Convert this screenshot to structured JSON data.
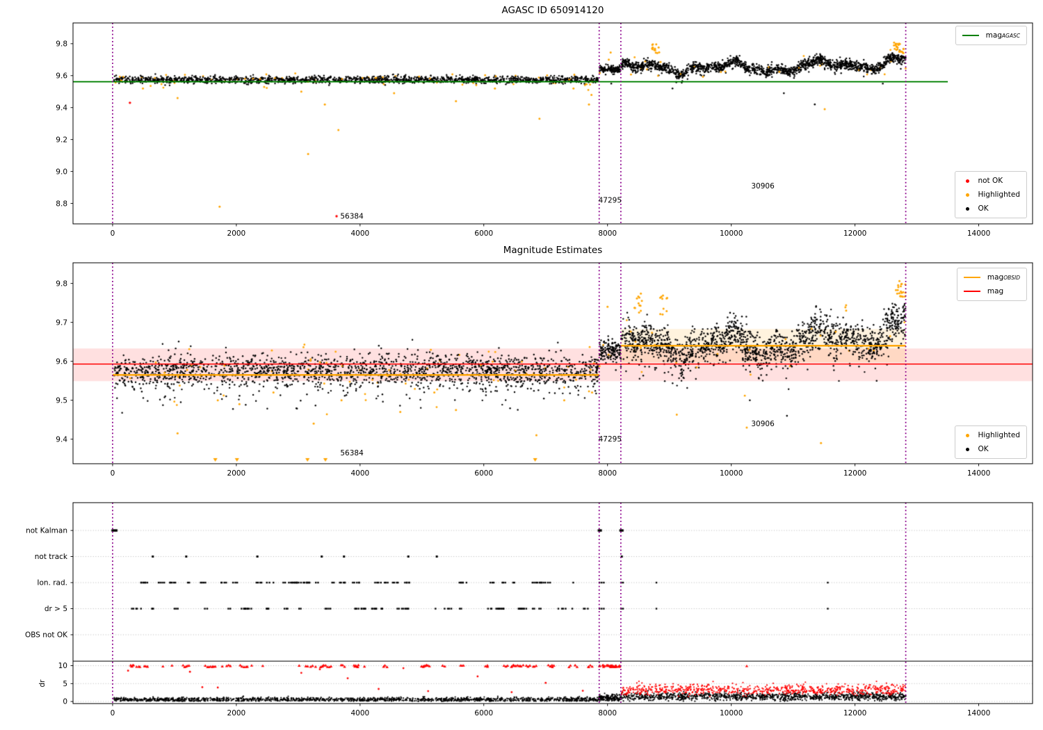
{
  "figure": {
    "plot1_title": "AGASC ID 650914120",
    "plot2_title": "Magnitude Estimates"
  },
  "colors": {
    "ok": "#000000",
    "highlighted": "#ffa500",
    "not_ok": "#ff0000",
    "mag_agasc": "#008000",
    "mag_obsid": "#ffa500",
    "mag": "#ff0000",
    "boundary_line": "#8b008b",
    "band_pink": "rgba(255,0,0,0.12)",
    "band_cream": "rgba(255,165,0,0.13)",
    "grid": "#b5b5b5"
  },
  "legends": {
    "plot1_line": {
      "label_prefix": "mag",
      "label_sub": "AGASC"
    },
    "plot1_markers": {
      "not_ok": "not OK",
      "highlighted": "Highlighted",
      "ok": "OK"
    },
    "plot2_line": {
      "obsid_prefix": "mag",
      "obsid_sub": "OBSID",
      "mag_label": "mag"
    },
    "plot2_markers": {
      "highlighted": "Highlighted",
      "ok": "OK"
    }
  },
  "chart_data": [
    {
      "type": "scatter",
      "title": "AGASC ID 650914120",
      "xlabel": "",
      "ylabel": "",
      "xlim": [
        -640,
        14870
      ],
      "ylim": [
        8.672,
        9.93
      ],
      "xticks": [
        0,
        2000,
        4000,
        6000,
        8000,
        10000,
        12000,
        14000
      ],
      "yticks": [
        8.8,
        9.0,
        9.2,
        9.4,
        9.6,
        9.8
      ],
      "legend": [
        "mag_AGASC",
        "not OK",
        "Highlighted",
        "OK"
      ],
      "agasc_line": {
        "y": 9.562,
        "x0": -640,
        "x1": 13500
      },
      "obsid_boundaries": [
        0,
        7865,
        8215,
        12820
      ],
      "series": [
        {
          "name": "OK band pre-jump",
          "x0": 20,
          "x1": 7850,
          "n": 1600,
          "mean": 9.574,
          "sigma": 0.011,
          "highlight_fraction": 0.05
        },
        {
          "name": "OK band between boundaries",
          "x0": 7870,
          "x1": 8210,
          "n": 130,
          "mean": 9.639,
          "sigma": 0.012,
          "highlight_fraction": 0.03
        },
        {
          "name": "OK band post-jump",
          "x0": 8215,
          "x1": 12820,
          "n": 1700,
          "base": 9.648,
          "wiggle": 0.045,
          "sigma": 0.017,
          "highlight_fraction": 0.012
        }
      ],
      "highlighted_outliers": [
        [
          490,
          9.52
        ],
        [
          1050,
          9.46
        ],
        [
          1730,
          8.78
        ],
        [
          2450,
          9.53
        ],
        [
          3050,
          9.5
        ],
        [
          3160,
          9.11
        ],
        [
          3430,
          9.42
        ],
        [
          3650,
          9.26
        ],
        [
          4550,
          9.49
        ],
        [
          5550,
          9.44
        ],
        [
          6180,
          9.52
        ],
        [
          6900,
          9.33
        ],
        [
          7450,
          9.52
        ],
        [
          7700,
          9.42
        ],
        [
          7740,
          9.48
        ],
        [
          8020,
          9.7
        ],
        [
          8050,
          9.745
        ],
        [
          11510,
          9.39
        ]
      ],
      "highlighted_clusters": [
        {
          "x0": 8720,
          "x1": 8880,
          "y0": 9.74,
          "y1": 9.8,
          "n": 14
        },
        {
          "x0": 12630,
          "x1": 12800,
          "y0": 9.74,
          "y1": 9.82,
          "n": 24
        }
      ],
      "not_ok_points": [
        [
          280,
          9.43
        ],
        [
          3620,
          8.72
        ]
      ],
      "ok_low_points": [
        [
          9050,
          9.52
        ],
        [
          10850,
          9.49
        ],
        [
          11350,
          9.42
        ],
        [
          12450,
          9.55
        ],
        [
          8060,
          9.55
        ]
      ],
      "annotations": [
        {
          "text": "56384",
          "x": 3680,
          "y": 8.72
        },
        {
          "text": "47295",
          "x": 8040,
          "y": 8.82
        },
        {
          "text": "30906",
          "x": 10510,
          "y": 8.91
        }
      ]
    },
    {
      "type": "scatter",
      "title": "Magnitude Estimates",
      "xlabel": "",
      "ylabel": "",
      "xlim": [
        -640,
        14870
      ],
      "ylim": [
        9.337,
        9.853
      ],
      "xticks": [
        0,
        2000,
        4000,
        6000,
        8000,
        10000,
        12000,
        14000
      ],
      "yticks": [
        9.4,
        9.5,
        9.6,
        9.7,
        9.8
      ],
      "legend": [
        "mag_OBSID",
        "mag",
        "Highlighted",
        "OK"
      ],
      "mag_line": {
        "y": 9.593,
        "band": [
          9.549,
          9.633
        ]
      },
      "obsid_segments": [
        {
          "x0": 0,
          "x1": 7865,
          "y": 9.565
        },
        {
          "x0": 8215,
          "x1": 12820,
          "y": 9.64,
          "band": [
            9.597,
            9.683
          ]
        }
      ],
      "obsid_boundaries": [
        0,
        7865,
        8215,
        12820
      ],
      "series": [
        {
          "name": "OK band pre-jump",
          "x0": 20,
          "x1": 7850,
          "n": 2000,
          "mean": 9.576,
          "sigma": 0.02,
          "tail_down": 0.08,
          "highlight_fraction": 0.035
        },
        {
          "name": "OK band between boundaries",
          "x0": 7870,
          "x1": 8210,
          "n": 140,
          "mean": 9.628,
          "sigma": 0.014,
          "highlight_fraction": 0.03
        },
        {
          "name": "OK band post-jump",
          "x0": 8215,
          "x1": 12820,
          "n": 1700,
          "base": 9.642,
          "wiggle": 0.04,
          "sigma": 0.023,
          "tail_down": 0.08,
          "highlight_fraction": 0.012
        }
      ],
      "highlighted_outliers": [
        [
          1050,
          9.415
        ],
        [
          1700,
          9.5
        ],
        [
          2050,
          9.49
        ],
        [
          2600,
          9.52
        ],
        [
          3250,
          9.44
        ],
        [
          3700,
          9.5
        ],
        [
          4650,
          9.47
        ],
        [
          5200,
          9.52
        ],
        [
          5550,
          9.475
        ],
        [
          6850,
          9.41
        ],
        [
          7300,
          9.5
        ],
        [
          7750,
          9.52
        ],
        [
          8000,
          9.74
        ],
        [
          10250,
          9.43
        ],
        [
          11450,
          9.39
        ]
      ],
      "highlighted_clusters": [
        {
          "x0": 8430,
          "x1": 8600,
          "y0": 9.72,
          "y1": 9.775,
          "n": 12
        },
        {
          "x0": 8840,
          "x1": 8970,
          "y0": 9.72,
          "y1": 9.775,
          "n": 10
        },
        {
          "x0": 11830,
          "x1": 11890,
          "y0": 9.73,
          "y1": 9.75,
          "n": 3
        },
        {
          "x0": 12660,
          "x1": 12820,
          "y0": 9.765,
          "y1": 9.815,
          "n": 20
        }
      ],
      "clipped_low_x": [
        1660,
        2010,
        3150,
        3440,
        6830
      ],
      "ok_low_points": [
        [
          10300,
          9.5
        ],
        [
          10900,
          9.46
        ],
        [
          12350,
          9.55
        ]
      ],
      "annotations": [
        {
          "text": "56384",
          "x": 3680,
          "y": 9.365
        },
        {
          "text": "47295",
          "x": 8040,
          "y": 9.4
        },
        {
          "text": "30906",
          "x": 10510,
          "y": 9.44
        }
      ]
    },
    {
      "type": "flags",
      "xticks": [
        0,
        2000,
        4000,
        6000,
        8000,
        10000,
        12000,
        14000
      ],
      "rows": [
        "not Kalman",
        "not track",
        "Ion. rad.",
        "dr > 5",
        "OBS not OK"
      ],
      "dr_axis": {
        "label": "dr",
        "ticks": [
          0,
          5,
          10
        ],
        "clip": 10
      },
      "obsid_boundaries": [
        0,
        7865,
        8215,
        12820
      ],
      "flag_points": {
        "not Kalman": [
          0,
          30,
          60,
          7860,
          7890,
          8210,
          8240
        ],
        "not track": [
          650,
          1190,
          2340,
          3380,
          3740,
          4780,
          5240,
          8230
        ],
        "Ion. rad.": {
          "cluster_n": 48,
          "x0": 60,
          "x1": 7820,
          "extra": [
            7870,
            7905,
            7940,
            8220,
            8250,
            8790,
            11560
          ]
        },
        "dr > 5": {
          "cluster_n": 48,
          "x0": 60,
          "x1": 7820,
          "extra": [
            7870,
            7905,
            7940,
            8220,
            8250,
            8790,
            11560
          ]
        },
        "OBS not OK": []
      },
      "dr_series": {
        "ok_pre": {
          "x0": 20,
          "x1": 7850,
          "n": 1400,
          "mean": 0.55,
          "spread": 0.3
        },
        "ok_mid": {
          "x0": 7860,
          "x1": 8210,
          "n": 150,
          "mean": 0.95,
          "spread": 0.45
        },
        "ok_post": {
          "x0": 8215,
          "x1": 12820,
          "n": 1100,
          "mean": 1.35,
          "spread": 0.55
        },
        "bad_post": {
          "x0": 8230,
          "x1": 12820,
          "n": 700,
          "mean": 3.3,
          "spread": 0.75
        },
        "bad_clipped_pre": {
          "clusters": 55,
          "x0": 40,
          "x1": 7830
        },
        "bad_clipped_mid": {
          "x0": 7870,
          "x1": 8205,
          "n": 30
        },
        "bad_clipped_post": [
          10250
        ],
        "bad_sparse": [
          [
            250,
            8.6
          ],
          [
            1250,
            8.3
          ],
          [
            1450,
            4.0
          ],
          [
            1700,
            3.9
          ],
          [
            3050,
            8.0
          ],
          [
            3350,
            9.0
          ],
          [
            3800,
            6.5
          ],
          [
            4300,
            3.5
          ],
          [
            4700,
            9.3
          ],
          [
            5100,
            2.9
          ],
          [
            5900,
            7.0
          ],
          [
            6450,
            2.6
          ],
          [
            7000,
            5.2
          ],
          [
            7600,
            3.0
          ]
        ]
      }
    }
  ]
}
